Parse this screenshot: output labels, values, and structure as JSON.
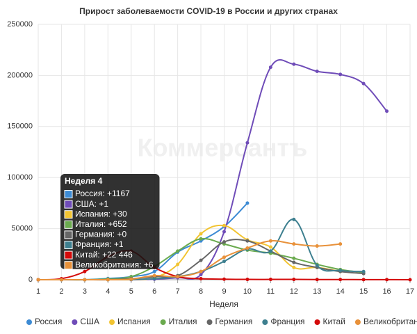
{
  "chart_data": {
    "type": "line",
    "title": "Прирост заболеваемости COVID-19 в России и других странах",
    "watermark": "Коммерсантъ",
    "x_label": "Неделя",
    "x": [
      1,
      2,
      3,
      4,
      5,
      6,
      7,
      8,
      9,
      10,
      11,
      12,
      13,
      14,
      15,
      16,
      17
    ],
    "xlim": [
      1,
      17
    ],
    "xticks": [
      1,
      2,
      3,
      4,
      5,
      6,
      7,
      8,
      9,
      10,
      11,
      12,
      13,
      14,
      15,
      16,
      17
    ],
    "ylim": [
      0,
      250000
    ],
    "yticks": [
      0,
      50000,
      100000,
      150000,
      200000,
      250000
    ],
    "grid": true,
    "legend": "bottom",
    "series": [
      {
        "name": "Россия",
        "color": "#3d8bd4",
        "values": [
          0,
          0,
          0,
          1167,
          3000,
          8000,
          27000,
          38000,
          52000,
          75000,
          null,
          null,
          null,
          null,
          null,
          null,
          null
        ]
      },
      {
        "name": "США",
        "color": "#6f4cb8",
        "values": [
          0,
          0,
          0,
          1,
          1,
          500,
          2000,
          5000,
          47000,
          134000,
          208000,
          211000,
          204000,
          201000,
          192000,
          165000,
          null
        ]
      },
      {
        "name": "Испания",
        "color": "#f2c432",
        "values": [
          0,
          0,
          0,
          30,
          200,
          2000,
          15000,
          45000,
          53000,
          39000,
          32000,
          12000,
          12000,
          8000,
          null,
          null,
          null
        ]
      },
      {
        "name": "Италия",
        "color": "#6aaa4e",
        "values": [
          0,
          0,
          0,
          652,
          3000,
          13000,
          28000,
          40000,
          35000,
          29000,
          26000,
          21000,
          15000,
          10000,
          7000,
          null,
          null
        ]
      },
      {
        "name": "Германия",
        "color": "#666666",
        "values": [
          0,
          0,
          0,
          0,
          1000,
          3000,
          4000,
          19000,
          37000,
          38000,
          28000,
          17000,
          12000,
          8000,
          6000,
          null,
          null
        ]
      },
      {
        "name": "Франция",
        "color": "#3d7f8f",
        "values": [
          0,
          0,
          0,
          1,
          300,
          1000,
          3000,
          8000,
          18000,
          30000,
          28000,
          59000,
          14000,
          9000,
          8000,
          null,
          null
        ]
      },
      {
        "name": "Китай",
        "color": "#d40a0a",
        "values": [
          0,
          1000,
          8000,
          22446,
          28000,
          12000,
          3000,
          1000,
          500,
          300,
          300,
          300,
          200,
          200,
          100,
          100,
          0
        ]
      },
      {
        "name": "Великобритания",
        "color": "#e8913a",
        "values": [
          0,
          0,
          0,
          6,
          500,
          4000,
          3000,
          8000,
          22000,
          31000,
          38000,
          35000,
          33000,
          35000,
          null,
          null,
          null
        ]
      }
    ],
    "tooltip": {
      "title": "Неделя 4",
      "lines": [
        "Россия: +1167",
        "США: +1",
        "Испания: +30",
        "Италия: +652",
        "Германия: +0",
        "Франция: +1",
        "Китай: +22 446",
        "Великобритания: +6"
      ]
    }
  }
}
